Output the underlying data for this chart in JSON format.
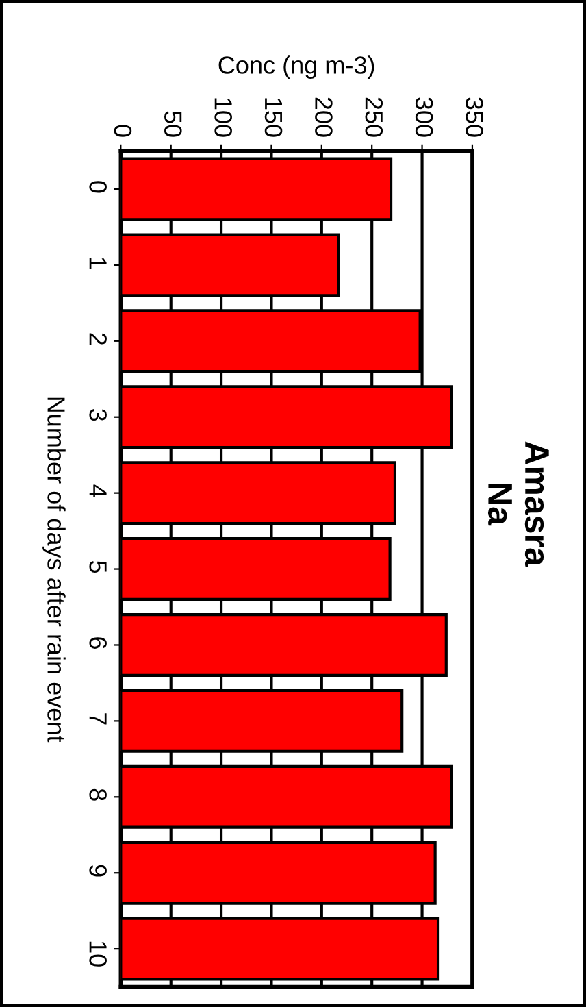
{
  "chart_data": {
    "type": "bar",
    "orientation": "horizontal",
    "title": "Amasra\nNa",
    "xlabel": "Conc (ng m-3)",
    "ylabel": "Number of days after rain event",
    "categories": [
      "0",
      "1",
      "2",
      "3",
      "4",
      "5",
      "6",
      "7",
      "8",
      "9",
      "10"
    ],
    "values": [
      269,
      217,
      298,
      329,
      273,
      268,
      324,
      280,
      329,
      313,
      316
    ],
    "color": "#ff0000",
    "xlim": [
      0,
      350
    ],
    "xticks": [
      0,
      50,
      100,
      150,
      200,
      250,
      300,
      350
    ],
    "grid": "x",
    "legend": false
  }
}
